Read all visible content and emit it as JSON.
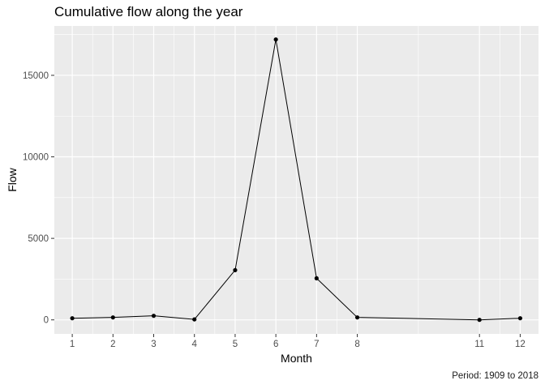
{
  "chart_data": {
    "type": "line",
    "title": "Cumulative flow along the year",
    "xlabel": "Month",
    "ylabel": "Flow",
    "caption": "Period: 1909 to 2018",
    "x": [
      1,
      2,
      3,
      4,
      5,
      6,
      7,
      8,
      11,
      12
    ],
    "y": [
      100,
      150,
      250,
      30,
      3050,
      17200,
      2550,
      150,
      0,
      100
    ],
    "x_ticks": [
      1,
      2,
      3,
      4,
      5,
      6,
      7,
      8,
      11,
      12
    ],
    "y_ticks": [
      0,
      5000,
      10000,
      15000
    ],
    "xlim": [
      0.56,
      12.45
    ],
    "ylim": [
      -860,
      18030
    ],
    "grid": true,
    "line_color": "#000000",
    "panel_background": "#ebebeb"
  }
}
